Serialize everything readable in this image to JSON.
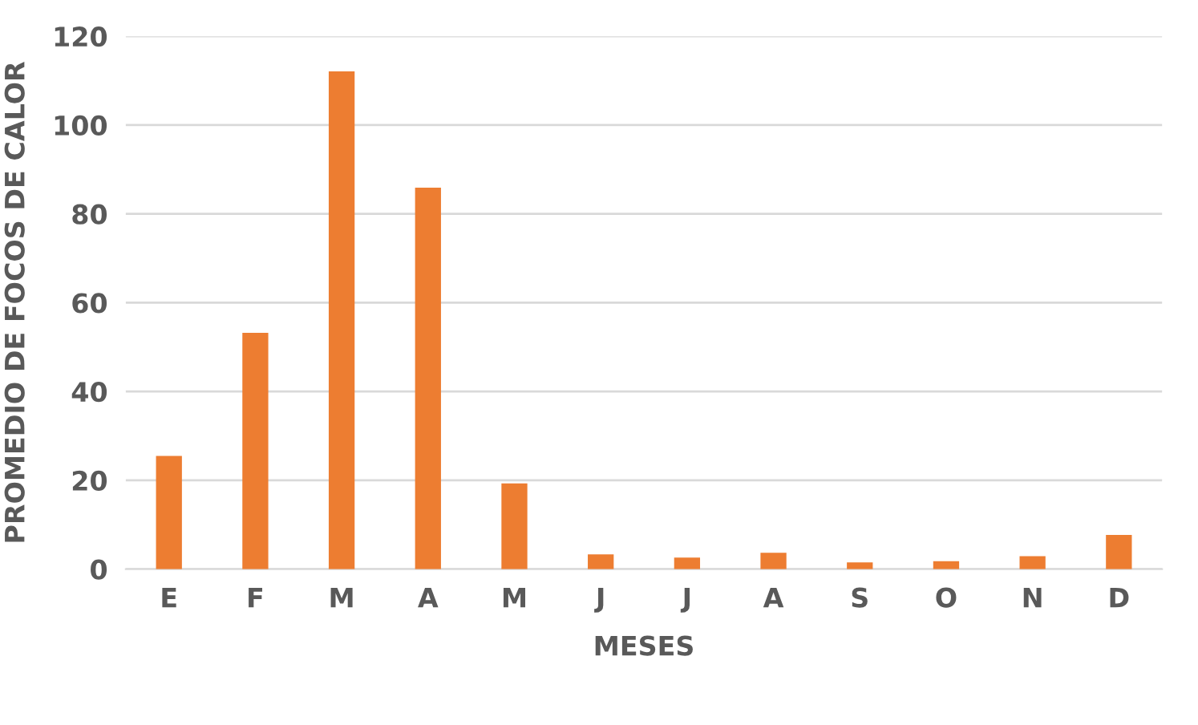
{
  "chart_data": {
    "type": "bar",
    "xlabel": "MESES",
    "ylabel": "PROMEDIO DE FOCOS DE CALOR",
    "categories": [
      "E",
      "F",
      "M",
      "A",
      "M",
      "J",
      "J",
      "A",
      "S",
      "O",
      "N",
      "D"
    ],
    "values": [
      25.5,
      53.2,
      112.1,
      85.9,
      19.3,
      3.3,
      2.6,
      3.7,
      1.5,
      1.8,
      2.9,
      7.7
    ],
    "color": "#ed7d31",
    "ylim": [
      0,
      120
    ],
    "yticks": [
      0,
      20,
      40,
      60,
      80,
      100,
      120
    ],
    "grid": "y"
  }
}
